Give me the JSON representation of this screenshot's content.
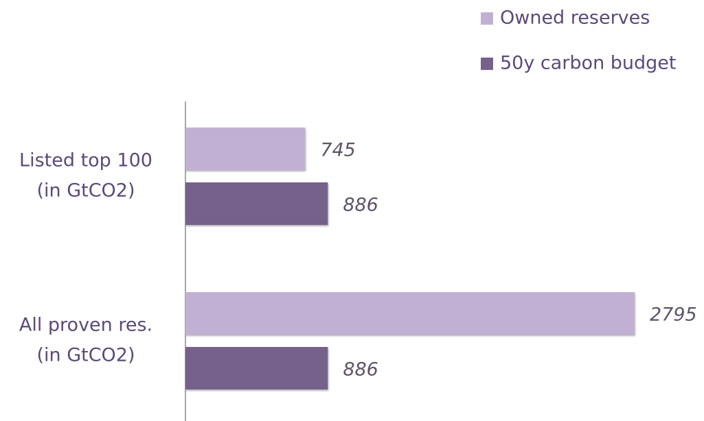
{
  "chart_data": {
    "type": "barh",
    "categories": [
      [
        "Listed top 100",
        "(in GtCO2)"
      ],
      [
        "All proven res.",
        "(in GtCO2)"
      ]
    ],
    "series": [
      {
        "name": "Owned reserves",
        "color": "#c1b0d4",
        "values": [
          745,
          2795
        ]
      },
      {
        "name": "50y carbon budget",
        "color": "#76608c",
        "values": [
          886,
          886
        ]
      }
    ],
    "xlim": [
      0,
      3000
    ],
    "legend": "top-right"
  }
}
